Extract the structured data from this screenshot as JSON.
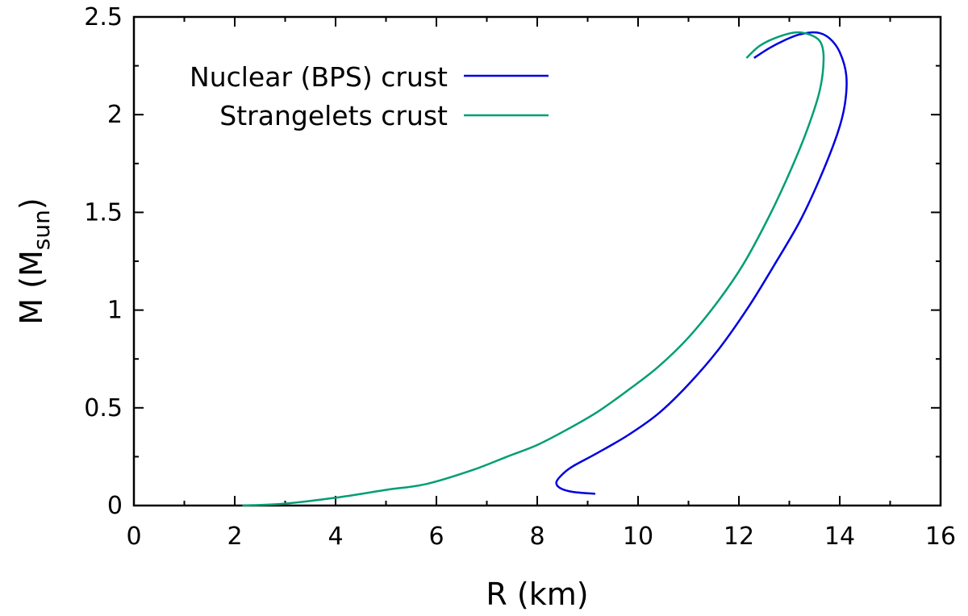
{
  "chart_data": {
    "type": "line",
    "title": "",
    "xlabel": "R (km)",
    "ylabel": {
      "main": "M (M",
      "sub": "sun",
      "close": ")"
    },
    "xlim": [
      0,
      16
    ],
    "ylim": [
      0,
      2.5
    ],
    "x_ticks": [
      0,
      2,
      4,
      6,
      8,
      10,
      12,
      14,
      16
    ],
    "x_tick_labels": [
      "0",
      "2",
      "4",
      "6",
      "8",
      "10",
      "12",
      "14",
      "16"
    ],
    "y_ticks": [
      0,
      0.5,
      1,
      1.5,
      2,
      2.5
    ],
    "y_tick_labels": [
      "0",
      "0.5",
      "1",
      "1.5",
      "2",
      "2.5"
    ],
    "grid": false,
    "legend_position": "top-left",
    "series": [
      {
        "name": "Nuclear (BPS) crust",
        "color": "#0000e0",
        "x": [
          9.15,
          8.7,
          8.45,
          8.38,
          8.5,
          8.7,
          9.2,
          9.8,
          10.4,
          11.0,
          11.6,
          12.2,
          12.7,
          13.2,
          13.6,
          13.95,
          14.1,
          14.13,
          14.0,
          13.8,
          13.55,
          13.2,
          12.9,
          12.6,
          12.3
        ],
        "y": [
          0.06,
          0.07,
          0.09,
          0.12,
          0.16,
          0.2,
          0.27,
          0.36,
          0.47,
          0.62,
          0.8,
          1.02,
          1.23,
          1.45,
          1.67,
          1.9,
          2.05,
          2.2,
          2.32,
          2.39,
          2.42,
          2.41,
          2.38,
          2.34,
          2.29
        ]
      },
      {
        "name": "Strangelets crust",
        "color": "#009e73",
        "x": [
          2.15,
          3.0,
          4.0,
          5.0,
          5.8,
          6.7,
          7.4,
          8.0,
          8.6,
          9.2,
          9.8,
          10.4,
          11.0,
          11.6,
          12.1,
          12.6,
          13.0,
          13.35,
          13.6,
          13.68,
          13.62,
          13.4,
          13.1,
          12.7,
          12.4,
          12.15
        ],
        "y": [
          0.0,
          0.01,
          0.04,
          0.08,
          0.11,
          0.18,
          0.25,
          0.31,
          0.39,
          0.48,
          0.59,
          0.71,
          0.86,
          1.05,
          1.24,
          1.48,
          1.7,
          1.92,
          2.12,
          2.28,
          2.37,
          2.41,
          2.42,
          2.39,
          2.35,
          2.29
        ]
      }
    ]
  }
}
